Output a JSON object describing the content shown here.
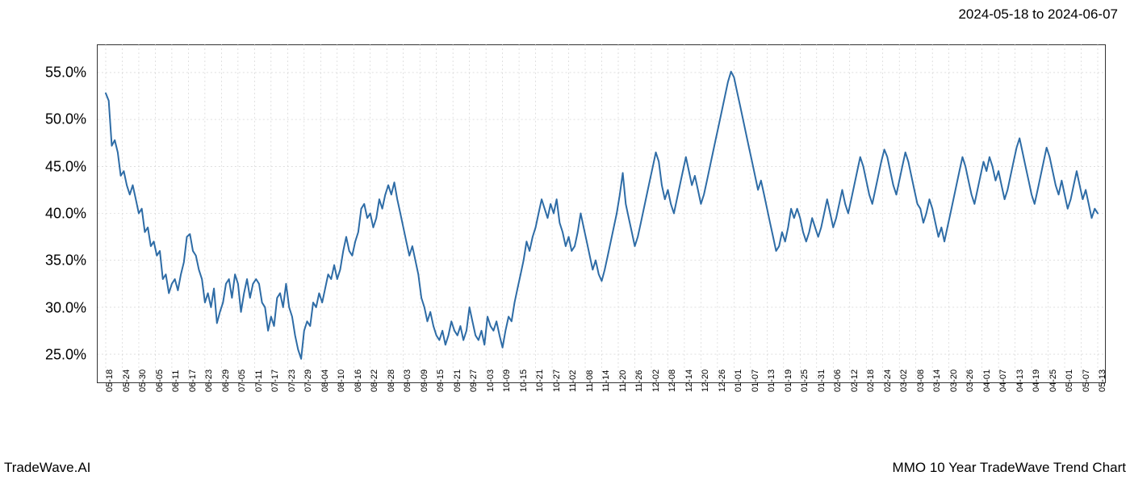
{
  "header": {
    "date_range": "2024-05-18 to 2024-06-07"
  },
  "footer": {
    "brand": "TradeWave.AI",
    "title": "MMO 10 Year TradeWave Trend Chart"
  },
  "chart": {
    "type": "line",
    "background_color": "#ffffff",
    "line_color": "#2e6ca6",
    "line_width": 2.0,
    "grid_color": "#cccccc",
    "grid_dash": "2,3",
    "highlight_band": {
      "start_label": "05-18",
      "end_label": "06-07",
      "color": "rgba(150,190,150,0.25)"
    },
    "y_axis": {
      "min": 22.0,
      "max": 58.0,
      "ticks": [
        25.0,
        30.0,
        35.0,
        40.0,
        45.0,
        50.0,
        55.0
      ],
      "tick_labels": [
        "25.0%",
        "30.0%",
        "35.0%",
        "40.0%",
        "45.0%",
        "50.0%",
        "55.0%"
      ],
      "label_fontsize": 18
    },
    "x_axis": {
      "tick_labels": [
        "05-18",
        "05-24",
        "05-30",
        "06-05",
        "06-11",
        "06-17",
        "06-23",
        "06-29",
        "07-05",
        "07-11",
        "07-17",
        "07-23",
        "07-29",
        "08-04",
        "08-10",
        "08-16",
        "08-22",
        "08-28",
        "09-03",
        "09-09",
        "09-15",
        "09-21",
        "09-27",
        "10-03",
        "10-09",
        "10-15",
        "10-21",
        "10-27",
        "11-02",
        "11-08",
        "11-14",
        "11-20",
        "11-26",
        "12-02",
        "12-08",
        "12-14",
        "12-20",
        "12-26",
        "01-01",
        "01-07",
        "01-13",
        "01-19",
        "01-25",
        "01-31",
        "02-06",
        "02-12",
        "02-18",
        "02-24",
        "03-02",
        "03-08",
        "03-14",
        "03-20",
        "03-26",
        "04-01",
        "04-07",
        "04-13",
        "04-19",
        "04-25",
        "05-01",
        "05-07",
        "05-13"
      ],
      "label_fontsize": 11
    },
    "series": {
      "values": [
        52.8,
        52.0,
        47.2,
        47.8,
        46.5,
        44.0,
        44.5,
        43.0,
        42.0,
        43.0,
        41.5,
        40.0,
        40.5,
        38.0,
        38.5,
        36.5,
        37.0,
        35.5,
        36.0,
        33.0,
        33.5,
        31.5,
        32.5,
        33.0,
        31.8,
        33.5,
        34.8,
        37.5,
        37.8,
        36.0,
        35.5,
        34.0,
        33.0,
        30.5,
        31.5,
        30.0,
        32.0,
        28.3,
        29.5,
        30.5,
        32.5,
        33.0,
        31.0,
        33.5,
        32.5,
        29.5,
        31.5,
        33.0,
        31.0,
        32.5,
        33.0,
        32.5,
        30.5,
        30.0,
        27.5,
        29.0,
        28.0,
        31.0,
        31.5,
        30.0,
        32.5,
        30.0,
        29.0,
        27.0,
        25.5,
        24.5,
        27.5,
        28.5,
        28.0,
        30.5,
        30.0,
        31.5,
        30.5,
        32.0,
        33.5,
        33.0,
        34.5,
        33.0,
        34.0,
        36.0,
        37.5,
        36.0,
        35.5,
        37.0,
        38.0,
        40.5,
        41.0,
        39.5,
        40.0,
        38.5,
        39.5,
        41.5,
        40.5,
        42.0,
        43.0,
        42.0,
        43.3,
        41.5,
        40.0,
        38.5,
        37.0,
        35.5,
        36.5,
        35.0,
        33.5,
        31.0,
        30.0,
        28.5,
        29.5,
        28.0,
        27.0,
        26.5,
        27.5,
        26.0,
        27.0,
        28.5,
        27.5,
        27.0,
        28.0,
        26.5,
        27.5,
        30.0,
        28.5,
        27.0,
        26.5,
        27.5,
        26.0,
        29.0,
        28.0,
        27.5,
        28.5,
        27.0,
        25.7,
        27.5,
        29.0,
        28.5,
        30.5,
        32.0,
        33.5,
        35.0,
        37.0,
        36.0,
        37.5,
        38.5,
        40.0,
        41.5,
        40.5,
        39.5,
        41.0,
        40.0,
        41.5,
        39.0,
        38.0,
        36.5,
        37.5,
        36.0,
        36.5,
        38.0,
        40.0,
        38.5,
        37.0,
        35.5,
        34.0,
        35.0,
        33.5,
        32.8,
        34.0,
        35.5,
        37.0,
        38.5,
        40.0,
        42.0,
        44.3,
        41.0,
        39.5,
        38.0,
        36.5,
        37.5,
        39.0,
        40.5,
        42.0,
        43.5,
        45.0,
        46.5,
        45.5,
        43.0,
        41.5,
        42.5,
        41.0,
        40.0,
        41.5,
        43.0,
        44.5,
        46.0,
        44.5,
        43.0,
        44.0,
        42.5,
        41.0,
        42.0,
        43.5,
        45.0,
        46.5,
        48.0,
        49.5,
        51.0,
        52.5,
        54.0,
        55.1,
        54.5,
        53.0,
        51.5,
        50.0,
        48.5,
        47.0,
        45.5,
        44.0,
        42.5,
        43.5,
        42.0,
        40.5,
        39.0,
        37.5,
        36.0,
        36.5,
        38.0,
        37.0,
        38.5,
        40.5,
        39.5,
        40.5,
        39.5,
        38.0,
        37.0,
        38.0,
        39.5,
        38.5,
        37.5,
        38.5,
        40.0,
        41.5,
        40.0,
        38.5,
        39.5,
        41.0,
        42.5,
        41.0,
        40.0,
        41.5,
        43.0,
        44.5,
        46.0,
        45.0,
        43.5,
        42.0,
        41.0,
        42.5,
        44.0,
        45.5,
        46.8,
        46.0,
        44.5,
        43.0,
        42.0,
        43.5,
        45.0,
        46.5,
        45.5,
        44.0,
        42.5,
        41.0,
        40.5,
        39.0,
        40.0,
        41.5,
        40.5,
        39.0,
        37.5,
        38.5,
        37.0,
        38.5,
        40.0,
        41.5,
        43.0,
        44.5,
        46.0,
        45.0,
        43.5,
        42.0,
        41.0,
        42.5,
        44.0,
        45.5,
        44.5,
        46.0,
        45.0,
        43.5,
        44.5,
        43.0,
        41.5,
        42.5,
        44.0,
        45.5,
        47.0,
        48.0,
        46.5,
        45.0,
        43.5,
        42.0,
        41.0,
        42.5,
        44.0,
        45.5,
        47.0,
        46.0,
        44.5,
        43.0,
        42.0,
        43.5,
        42.0,
        40.5,
        41.5,
        43.0,
        44.5,
        43.0,
        41.5,
        42.5,
        41.0,
        39.5,
        40.5,
        40.0
      ]
    }
  }
}
